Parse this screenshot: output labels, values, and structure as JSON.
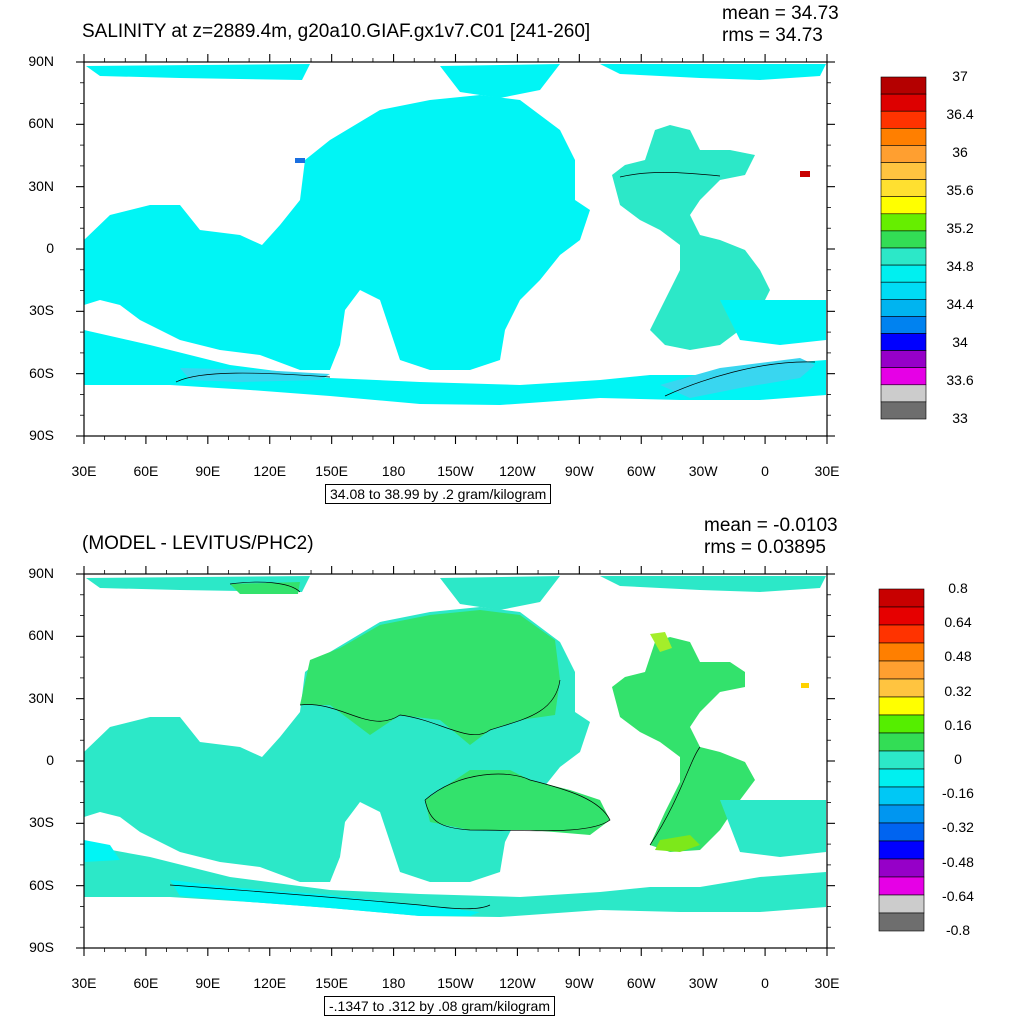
{
  "colors": {
    "ocean_low": "#00f5f5",
    "ocean_mid": "#2ce8c8",
    "ocean_pos": "#33e26c",
    "land": "#ffffff"
  },
  "x_tick_labels": [
    "30E",
    "60E",
    "90E",
    "120E",
    "150E",
    "180",
    "150W",
    "120W",
    "90W",
    "60W",
    "30W",
    "0",
    "30E"
  ],
  "y_tick_labels": [
    "90N",
    "60N",
    "30N",
    "0",
    "30S",
    "60S",
    "90S"
  ],
  "panel1": {
    "title": "SALINITY at z=2889.4m, g20a10.GIAF.gx1v7.C01 [241-260]",
    "mean": "mean = 34.73",
    "rms": "rms = 34.73",
    "info": "34.08 to 38.99 by .2 gram/kilogram",
    "colorbar": {
      "labels": [
        "37",
        "36.4",
        "36",
        "35.6",
        "35.2",
        "34.8",
        "34.4",
        "34",
        "33.6",
        "33"
      ],
      "colors": [
        "#b40000",
        "#dd0000",
        "#ff3300",
        "#ff7f00",
        "#ff9f30",
        "#ffc440",
        "#ffe030",
        "#ffff00",
        "#66ee00",
        "#33dd55",
        "#2ce8c8",
        "#00f0f0",
        "#00dcf5",
        "#00b4f0",
        "#0082f0",
        "#0000ff",
        "#9600c8",
        "#e600e6",
        "#cccccc",
        "#6e6e6e"
      ]
    }
  },
  "panel2": {
    "title": "(MODEL - LEVITUS/PHC2)",
    "mean": "mean = -0.0103",
    "rms": "rms = 0.03895",
    "info": "-.1347 to .312 by .08 gram/kilogram",
    "colorbar": {
      "labels": [
        "0.8",
        "0.64",
        "0.48",
        "0.32",
        "0.16",
        "0",
        "-0.16",
        "-0.32",
        "-0.48",
        "-0.64",
        "-0.8"
      ],
      "colors": [
        "#c80000",
        "#e60000",
        "#ff3300",
        "#ff7f00",
        "#ff9f30",
        "#ffc440",
        "#ffff00",
        "#55ee00",
        "#33dd55",
        "#2ce8c8",
        "#00f0f0",
        "#00c8f5",
        "#0096f0",
        "#0064f0",
        "#0000ff",
        "#9600c8",
        "#e600e6",
        "#cccccc",
        "#6e6e6e"
      ]
    }
  }
}
